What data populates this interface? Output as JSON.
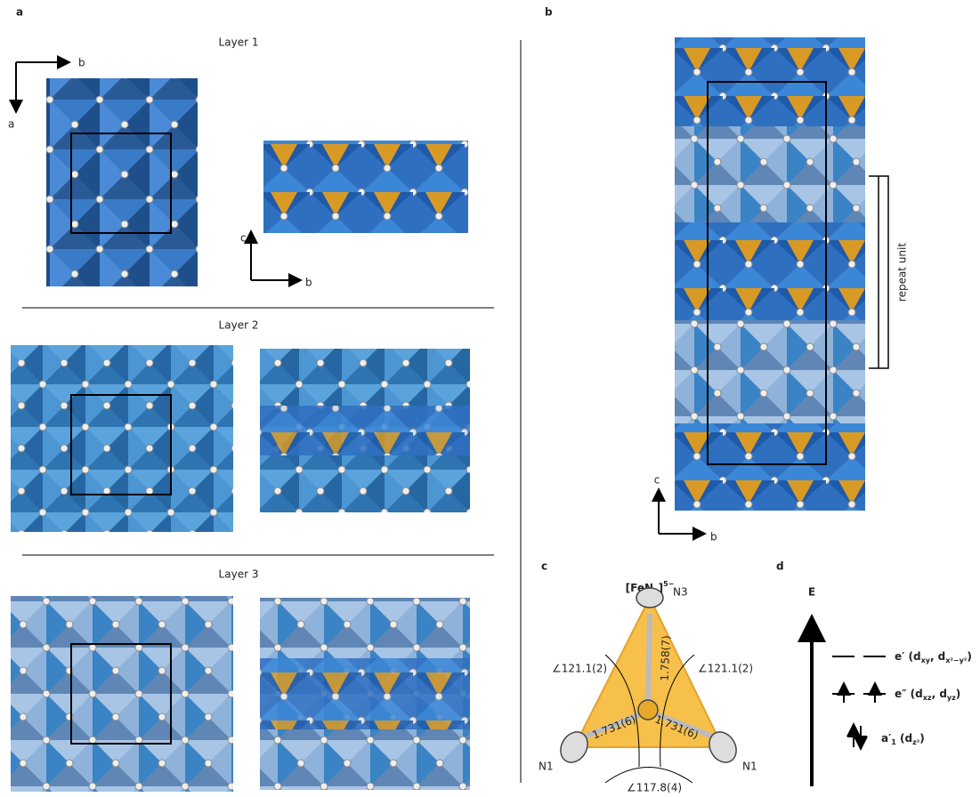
{
  "panels": {
    "a": {
      "label": "a",
      "layers": [
        {
          "title": "Layer 1"
        },
        {
          "title": "Layer 2"
        },
        {
          "title": "Layer 3"
        }
      ],
      "axes": {
        "plan": {
          "horizontal": "b",
          "vertical": "a"
        },
        "side": {
          "vertical": "c",
          "horizontal": "b"
        }
      }
    },
    "b": {
      "label": "b",
      "axes": {
        "vertical": "c",
        "horizontal": "b"
      },
      "annotation": "repeat unit"
    },
    "c": {
      "label": "c",
      "formula_parts": [
        {
          "text": "[FeN"
        },
        {
          "text": "3",
          "sub": true
        },
        {
          "text": "]"
        },
        {
          "text": "5−",
          "sup": true
        }
      ],
      "atoms": [
        "N3",
        "N1",
        "N1"
      ],
      "bond_lengths": [
        "1.758(7)",
        "1.731(6)",
        "1.731(6)"
      ],
      "angles": [
        "∠121.1(2)",
        "∠121.1(2)",
        "∠117.8(4)"
      ]
    },
    "d": {
      "label": "d",
      "axis_label": "E",
      "levels": [
        {
          "label_parts": [
            {
              "text": "e′ (d"
            },
            {
              "text": "xy",
              "sub": true
            },
            {
              "text": ", d"
            },
            {
              "text": "x²−y²",
              "sub": true
            },
            {
              "text": ")"
            }
          ]
        },
        {
          "label_parts": [
            {
              "text": "e″ (d"
            },
            {
              "text": "xz",
              "sub": true
            },
            {
              "text": ", d"
            },
            {
              "text": "yz",
              "sub": true
            },
            {
              "text": ")"
            }
          ]
        },
        {
          "label_parts": [
            {
              "text": "a′"
            },
            {
              "text": "1",
              "sub": true
            },
            {
              "text": " (d"
            },
            {
              "text": "z²",
              "sub": true
            },
            {
              "text": ")"
            }
          ]
        }
      ]
    }
  }
}
